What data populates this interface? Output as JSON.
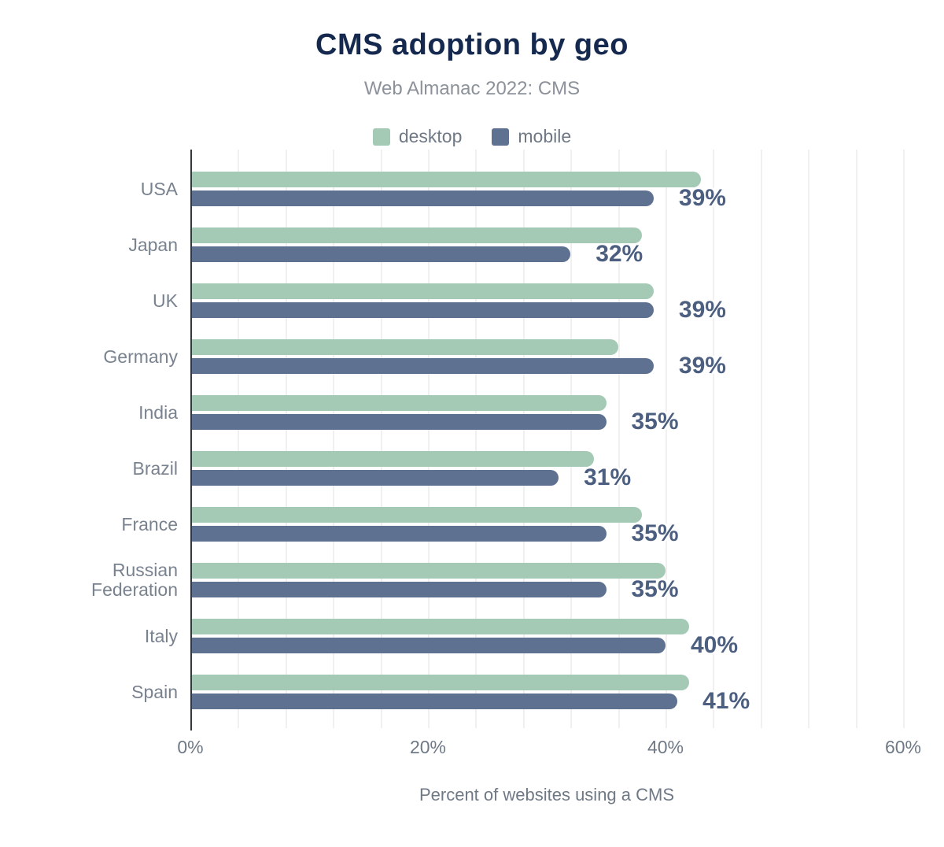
{
  "chart": {
    "title": "CMS adoption by geo",
    "subtitle": "Web Almanac 2022: CMS",
    "x_axis_title": "Percent of websites using a CMS"
  },
  "colors": {
    "title": "#15294e",
    "subtitle": "#8c919a",
    "desktop": "#a4c9b5",
    "mobile": "#5f7190",
    "value_label": "#4c5f80",
    "axis_text": "#6f7986",
    "category_text": "#79828f",
    "axis_line": "#34383e",
    "gridline": "#f0f0f1",
    "background": "#ffffff"
  },
  "chart_data": {
    "type": "bar",
    "orientation": "horizontal",
    "title": "CMS adoption by geo",
    "subtitle": "Web Almanac 2022: CMS",
    "xlabel": "Percent of websites using a CMS",
    "ylabel": "",
    "categories": [
      "USA",
      "Japan",
      "UK",
      "Germany",
      "India",
      "Brazil",
      "France",
      "Russian Federation",
      "Italy",
      "Spain"
    ],
    "series": [
      {
        "name": "desktop",
        "values": [
          43,
          38,
          39,
          36,
          35,
          34,
          38,
          40,
          42,
          42
        ]
      },
      {
        "name": "mobile",
        "values": [
          39,
          32,
          39,
          39,
          35,
          31,
          35,
          35,
          40,
          41
        ]
      }
    ],
    "value_labels": [
      "39%",
      "32%",
      "39%",
      "39%",
      "35%",
      "31%",
      "35%",
      "35%",
      "40%",
      "41%"
    ],
    "value_labels_series": "mobile",
    "xlim": [
      0,
      62
    ],
    "x_tick_values": [
      0,
      20,
      40,
      60
    ],
    "x_tick_labels": [
      "0%",
      "20%",
      "40%",
      "60%"
    ],
    "minor_gridline_step_pct": 4,
    "grid": true,
    "legend_position": "top"
  }
}
